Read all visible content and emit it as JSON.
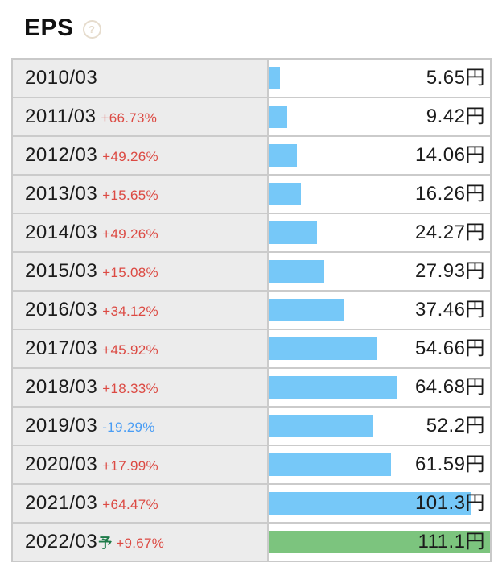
{
  "header": {
    "title": "EPS",
    "help_glyph": "?"
  },
  "colors": {
    "bar_blue": "#76c8f8",
    "bar_green": "#7cc47e",
    "change_up": "#dc4a43",
    "change_down": "#4a9df4",
    "forecast": "#1e7b49",
    "row_label_bg": "#ececec",
    "border": "#cbcbcb",
    "text": "#1b1b1b",
    "help_icon": "#e6dccd"
  },
  "chart_data": {
    "type": "bar",
    "orientation": "horizontal",
    "title": "EPS",
    "unit": "円",
    "scale_max": 111.1,
    "legend": "none",
    "categories": [
      "2010/03",
      "2011/03",
      "2012/03",
      "2013/03",
      "2014/03",
      "2015/03",
      "2016/03",
      "2017/03",
      "2018/03",
      "2019/03",
      "2020/03",
      "2021/03",
      "2022/03予"
    ],
    "values": [
      5.65,
      9.42,
      14.06,
      16.26,
      24.27,
      27.93,
      37.46,
      54.66,
      64.68,
      52.2,
      61.59,
      101.3,
      111.1
    ],
    "changes_pct": [
      null,
      66.73,
      49.26,
      15.65,
      49.26,
      15.08,
      34.12,
      45.92,
      18.33,
      -19.29,
      17.99,
      64.47,
      9.67
    ],
    "rows": [
      {
        "period": "2010/03",
        "forecast_mark": "",
        "change": "",
        "direction": "none",
        "value": 5.65,
        "value_label": "5.65円",
        "bar": "bar_blue"
      },
      {
        "period": "2011/03",
        "forecast_mark": "",
        "change": "+66.73%",
        "direction": "up",
        "value": 9.42,
        "value_label": "9.42円",
        "bar": "bar_blue"
      },
      {
        "period": "2012/03",
        "forecast_mark": "",
        "change": "+49.26%",
        "direction": "up",
        "value": 14.06,
        "value_label": "14.06円",
        "bar": "bar_blue"
      },
      {
        "period": "2013/03",
        "forecast_mark": "",
        "change": "+15.65%",
        "direction": "up",
        "value": 16.26,
        "value_label": "16.26円",
        "bar": "bar_blue"
      },
      {
        "period": "2014/03",
        "forecast_mark": "",
        "change": "+49.26%",
        "direction": "up",
        "value": 24.27,
        "value_label": "24.27円",
        "bar": "bar_blue"
      },
      {
        "period": "2015/03",
        "forecast_mark": "",
        "change": "+15.08%",
        "direction": "up",
        "value": 27.93,
        "value_label": "27.93円",
        "bar": "bar_blue"
      },
      {
        "period": "2016/03",
        "forecast_mark": "",
        "change": "+34.12%",
        "direction": "up",
        "value": 37.46,
        "value_label": "37.46円",
        "bar": "bar_blue"
      },
      {
        "period": "2017/03",
        "forecast_mark": "",
        "change": "+45.92%",
        "direction": "up",
        "value": 54.66,
        "value_label": "54.66円",
        "bar": "bar_blue"
      },
      {
        "period": "2018/03",
        "forecast_mark": "",
        "change": "+18.33%",
        "direction": "up",
        "value": 64.68,
        "value_label": "64.68円",
        "bar": "bar_blue"
      },
      {
        "period": "2019/03",
        "forecast_mark": "",
        "change": "-19.29%",
        "direction": "down",
        "value": 52.2,
        "value_label": "52.2円",
        "bar": "bar_blue"
      },
      {
        "period": "2020/03",
        "forecast_mark": "",
        "change": "+17.99%",
        "direction": "up",
        "value": 61.59,
        "value_label": "61.59円",
        "bar": "bar_blue"
      },
      {
        "period": "2021/03",
        "forecast_mark": "",
        "change": "+64.47%",
        "direction": "up",
        "value": 101.3,
        "value_label": "101.3円",
        "bar": "bar_blue"
      },
      {
        "period": "2022/03",
        "forecast_mark": "予",
        "change": "+9.67%",
        "direction": "up",
        "value": 111.1,
        "value_label": "111.1円",
        "bar": "bar_green"
      }
    ]
  }
}
